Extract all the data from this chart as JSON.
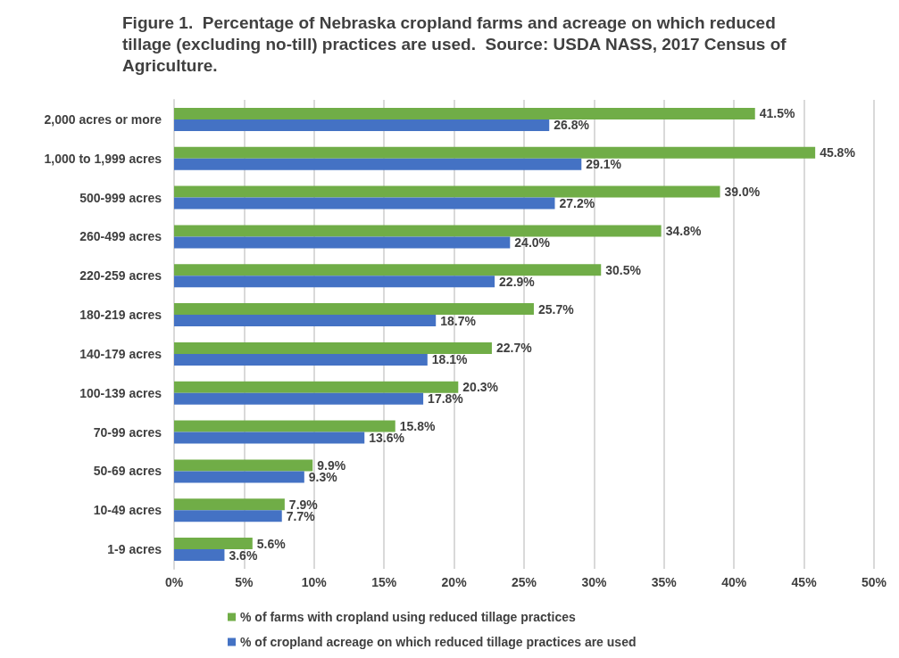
{
  "chart_data": {
    "type": "bar",
    "orientation": "horizontal",
    "title": "Figure 1.  Percentage of Nebraska cropland farms and acreage on which reduced tillage (excluding no-till) practices are used.  Source: USDA NASS, 2017 Census of Agriculture.",
    "categories": [
      "2,000 acres or more",
      "1,000 to 1,999 acres",
      "500-999 acres",
      "260-499 acres",
      "220-259 acres",
      "180-219 acres",
      "140-179 acres",
      "100-139 acres",
      "70-99 acres",
      "50-69 acres",
      "10-49 acres",
      "1-9 acres"
    ],
    "series": [
      {
        "name": "% of farms with cropland using reduced tillage practices",
        "color": "#70ad47",
        "values": [
          41.5,
          45.8,
          39.0,
          34.8,
          30.5,
          25.7,
          22.7,
          20.3,
          15.8,
          9.9,
          7.9,
          5.6
        ],
        "value_labels": [
          "41.5%",
          "45.8%",
          "39.0%",
          "34.8%",
          "30.5%",
          "25.7%",
          "22.7%",
          "20.3%",
          "15.8%",
          "9.9%",
          "7.9%",
          "5.6%"
        ]
      },
      {
        "name": "% of cropland acreage on which reduced tillage practices are used",
        "color": "#4472c4",
        "values": [
          26.8,
          29.1,
          27.2,
          24.0,
          22.9,
          18.7,
          18.1,
          17.8,
          13.6,
          9.3,
          7.7,
          3.6
        ],
        "value_labels": [
          "26.8%",
          "29.1%",
          "27.2%",
          "24.0%",
          "22.9%",
          "18.7%",
          "18.1%",
          "17.8%",
          "13.6%",
          "9.3%",
          "7.7%",
          "3.6%"
        ]
      }
    ],
    "xlim": [
      0,
      50
    ],
    "xticks": [
      {
        "value": 0,
        "label": "0%"
      },
      {
        "value": 5,
        "label": "5%"
      },
      {
        "value": 10,
        "label": "10%"
      },
      {
        "value": 15,
        "label": "15%"
      },
      {
        "value": 20,
        "label": "20%"
      },
      {
        "value": 25,
        "label": "25%"
      },
      {
        "value": 30,
        "label": "30%"
      },
      {
        "value": 35,
        "label": "35%"
      },
      {
        "value": 40,
        "label": "40%"
      },
      {
        "value": 45,
        "label": "45%"
      },
      {
        "value": 50,
        "label": "50%"
      }
    ],
    "grid": "x",
    "legend": "bottom"
  }
}
